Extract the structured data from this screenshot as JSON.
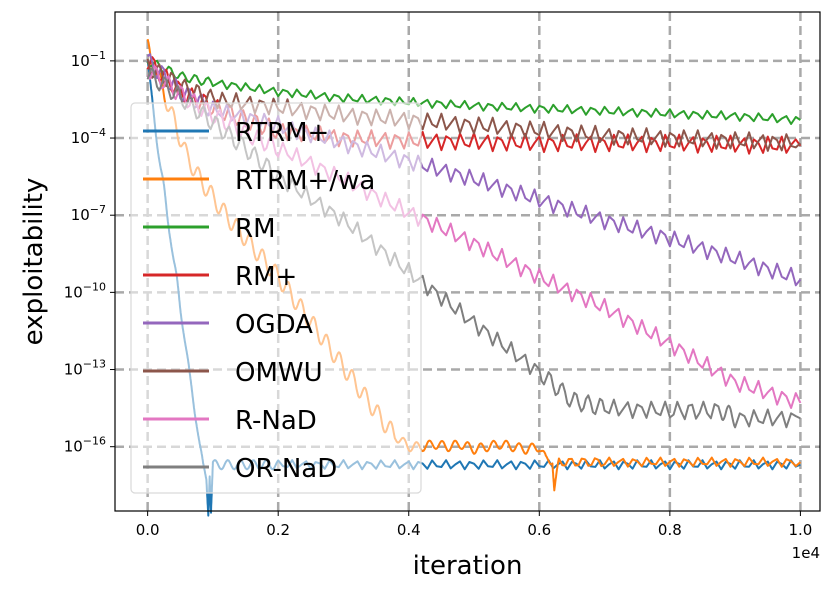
{
  "chart_data": {
    "type": "line",
    "title": "",
    "xlabel": "iteration",
    "ylabel": "exploitability",
    "x_offset_label": "1e4",
    "x_scale": "linear",
    "y_scale": "log",
    "xlim": [
      -0.05,
      1.03
    ],
    "ylim_log10": [
      -18.5,
      0.9
    ],
    "x_ticks": [
      0.0,
      0.2,
      0.4,
      0.6,
      0.8,
      1.0
    ],
    "x_tick_labels": [
      "0.0",
      "0.2",
      "0.4",
      "0.6",
      "0.8",
      "1.0"
    ],
    "y_ticks_log10": [
      -1,
      -4,
      -7,
      -10,
      -13,
      -16
    ],
    "y_tick_labels": [
      {
        "base": "10",
        "exp": "−1"
      },
      {
        "base": "10",
        "exp": "−4"
      },
      {
        "base": "10",
        "exp": "−7"
      },
      {
        "base": "10",
        "exp": "−10"
      },
      {
        "base": "10",
        "exp": "−13"
      },
      {
        "base": "10",
        "exp": "−16"
      }
    ],
    "grid": true,
    "legend_position": "left",
    "series": [
      {
        "name": "RTRM+",
        "color": "#1f77b4",
        "x": [
          0,
          0.005,
          0.01,
          0.015,
          0.02,
          0.025,
          0.03,
          0.035,
          0.04,
          0.045,
          0.05,
          0.055,
          0.06,
          0.065,
          0.07,
          0.075,
          0.08,
          0.085,
          0.09,
          0.093,
          0.095,
          0.097,
          0.1,
          0.12,
          0.15,
          0.18,
          0.2,
          0.3,
          0.4,
          0.5,
          0.6,
          0.7,
          0.8,
          0.9,
          1.0
        ],
        "y": [
          -1.0,
          -2.2,
          -3.2,
          -4.2,
          -5.2,
          -6.0,
          -7.0,
          -7.8,
          -8.8,
          -9.6,
          -10.6,
          -11.4,
          -12.4,
          -13.4,
          -14.2,
          -15.0,
          -16.0,
          -16.8,
          -17.2,
          -18.5,
          -17.0,
          -18.5,
          -16.7,
          -16.7,
          -16.7,
          -16.7,
          -16.7,
          -16.7,
          -16.7,
          -16.7,
          -16.7,
          -16.7,
          -16.7,
          -16.7,
          -16.7
        ]
      },
      {
        "name": "RTRM+/wa",
        "color": "#ff7f0e",
        "x": [
          0,
          0.02,
          0.04,
          0.06,
          0.08,
          0.1,
          0.12,
          0.14,
          0.16,
          0.18,
          0.2,
          0.22,
          0.24,
          0.26,
          0.28,
          0.3,
          0.32,
          0.34,
          0.36,
          0.38,
          0.4,
          0.42,
          0.44,
          0.46,
          0.48,
          0.5,
          0.52,
          0.54,
          0.56,
          0.58,
          0.6,
          0.61,
          0.62,
          0.623,
          0.63,
          0.7,
          0.8,
          0.9,
          1.0
        ],
        "y": [
          -0.5,
          -1.9,
          -3.3,
          -4.7,
          -5.6,
          -6.3,
          -7.0,
          -7.6,
          -8.2,
          -8.8,
          -9.4,
          -10.1,
          -10.8,
          -11.5,
          -12.2,
          -12.9,
          -13.6,
          -14.3,
          -15.0,
          -15.6,
          -16.0,
          -16.0,
          -15.9,
          -16.0,
          -15.9,
          -16.1,
          -16.0,
          -15.9,
          -16.0,
          -16.1,
          -16.0,
          -16.5,
          -16.5,
          -17.7,
          -16.6,
          -16.6,
          -16.6,
          -16.6,
          -16.6
        ]
      },
      {
        "name": "RM",
        "color": "#2ca02c",
        "x": [
          0,
          0.05,
          0.1,
          0.2,
          0.3,
          0.4,
          0.5,
          0.6,
          0.7,
          0.8,
          0.9,
          1.0
        ],
        "y": [
          -1.0,
          -1.6,
          -1.85,
          -2.2,
          -2.45,
          -2.6,
          -2.75,
          -2.85,
          -2.95,
          -3.05,
          -3.15,
          -3.3
        ]
      },
      {
        "name": "RM+",
        "color": "#d62728",
        "x": [
          0,
          0.05,
          0.1,
          0.15,
          0.2,
          0.3,
          0.4,
          0.5,
          0.6,
          0.7,
          0.8,
          0.9,
          1.0
        ],
        "y": [
          -1.0,
          -2.2,
          -2.8,
          -3.3,
          -3.7,
          -4.0,
          -4.1,
          -4.15,
          -4.2,
          -4.2,
          -4.2,
          -4.25,
          -4.3
        ]
      },
      {
        "name": "OGDA",
        "color": "#9467bd",
        "x": [
          0,
          0.05,
          0.1,
          0.2,
          0.3,
          0.4,
          0.5,
          0.6,
          0.7,
          0.8,
          0.9,
          1.0
        ],
        "y": [
          -1.0,
          -2.2,
          -2.9,
          -3.5,
          -4.2,
          -4.9,
          -5.6,
          -6.4,
          -7.2,
          -7.9,
          -8.7,
          -9.5
        ]
      },
      {
        "name": "OMWU",
        "color": "#8c564b",
        "x": [
          0,
          0.05,
          0.1,
          0.2,
          0.3,
          0.4,
          0.5,
          0.6,
          0.7,
          0.8,
          0.9,
          1.0
        ],
        "y": [
          -1.2,
          -2.0,
          -2.5,
          -2.8,
          -3.1,
          -3.3,
          -3.5,
          -3.7,
          -3.9,
          -4.0,
          -4.1,
          -4.2
        ]
      },
      {
        "name": "R-NaD",
        "color": "#e377c2",
        "x": [
          0,
          0.05,
          0.1,
          0.15,
          0.2,
          0.3,
          0.4,
          0.5,
          0.6,
          0.7,
          0.8,
          0.9,
          1.0
        ],
        "y": [
          -1.3,
          -2.3,
          -3.1,
          -3.8,
          -4.4,
          -5.6,
          -6.9,
          -8.1,
          -9.4,
          -10.6,
          -12.0,
          -13.5,
          -14.3
        ]
      },
      {
        "name": "OR-NaD",
        "color": "#7f7f7f",
        "x": [
          0,
          0.05,
          0.1,
          0.15,
          0.2,
          0.3,
          0.4,
          0.5,
          0.6,
          0.65,
          0.7,
          0.8,
          0.88,
          0.9,
          1.0
        ],
        "y": [
          -1.5,
          -2.4,
          -3.4,
          -4.4,
          -5.5,
          -7.2,
          -9.2,
          -11.2,
          -13.1,
          -14.2,
          -14.5,
          -14.6,
          -14.6,
          -14.9,
          -14.9
        ]
      }
    ]
  }
}
